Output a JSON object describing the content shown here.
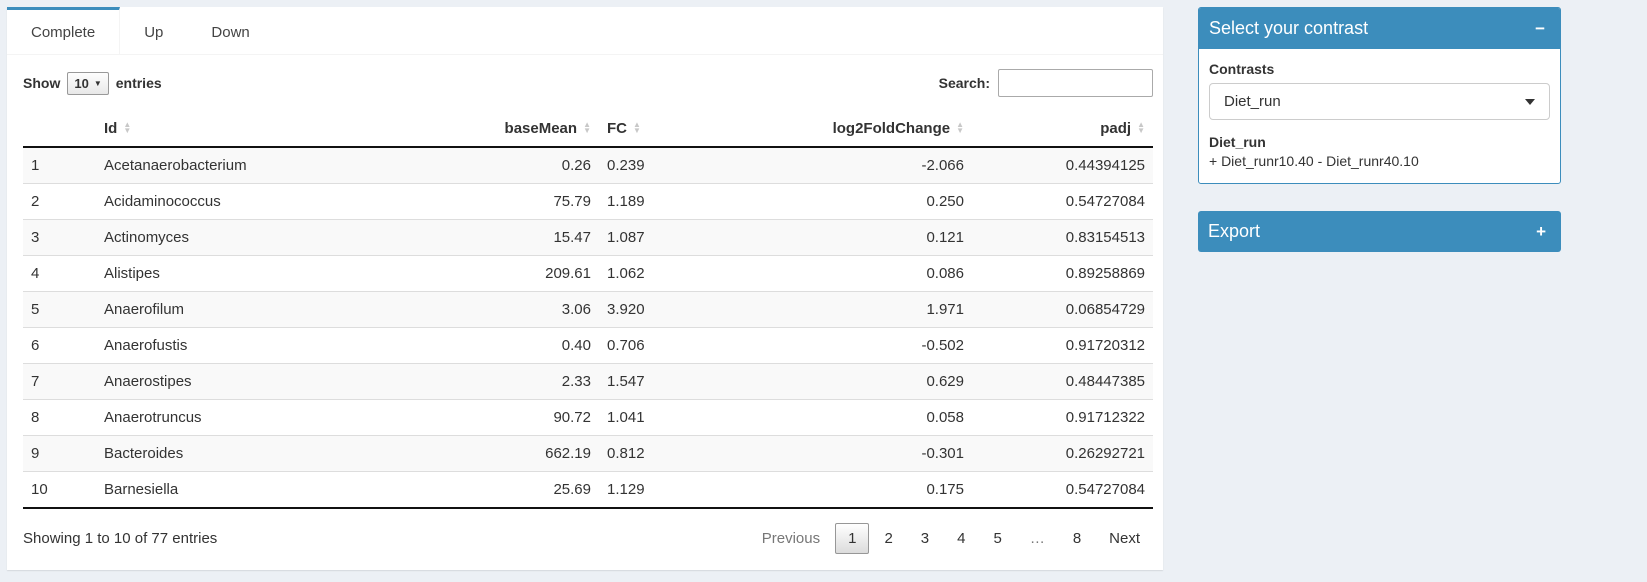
{
  "colors": {
    "accent": "#3c8dbc",
    "page_bg": "#ecf0f5"
  },
  "tabs": [
    {
      "label": "Complete",
      "active": true
    },
    {
      "label": "Up",
      "active": false
    },
    {
      "label": "Down",
      "active": false
    }
  ],
  "controls": {
    "show_label": "Show",
    "page_length": "10",
    "entries_label": "entries",
    "search_label": "Search:",
    "search_value": ""
  },
  "table": {
    "columns": [
      {
        "label": "Id",
        "align": "left",
        "key": "id"
      },
      {
        "label": "baseMean",
        "align": "right",
        "key": "baseMean"
      },
      {
        "label": "FC",
        "align": "left",
        "key": "fc"
      },
      {
        "label": "log2FoldChange",
        "align": "right",
        "key": "log2fc"
      },
      {
        "label": "padj",
        "align": "right",
        "key": "padj"
      }
    ],
    "rows": [
      {
        "num": "1",
        "id": "Acetanaerobacterium",
        "baseMean": "0.26",
        "fc": "0.239",
        "log2fc": "-2.066",
        "padj": "0.44394125"
      },
      {
        "num": "2",
        "id": "Acidaminococcus",
        "baseMean": "75.79",
        "fc": "1.189",
        "log2fc": "0.250",
        "padj": "0.54727084"
      },
      {
        "num": "3",
        "id": "Actinomyces",
        "baseMean": "15.47",
        "fc": "1.087",
        "log2fc": "0.121",
        "padj": "0.83154513"
      },
      {
        "num": "4",
        "id": "Alistipes",
        "baseMean": "209.61",
        "fc": "1.062",
        "log2fc": "0.086",
        "padj": "0.89258869"
      },
      {
        "num": "5",
        "id": "Anaerofilum",
        "baseMean": "3.06",
        "fc": "3.920",
        "log2fc": "1.971",
        "padj": "0.06854729"
      },
      {
        "num": "6",
        "id": "Anaerofustis",
        "baseMean": "0.40",
        "fc": "0.706",
        "log2fc": "-0.502",
        "padj": "0.91720312"
      },
      {
        "num": "7",
        "id": "Anaerostipes",
        "baseMean": "2.33",
        "fc": "1.547",
        "log2fc": "0.629",
        "padj": "0.48447385"
      },
      {
        "num": "8",
        "id": "Anaerotruncus",
        "baseMean": "90.72",
        "fc": "1.041",
        "log2fc": "0.058",
        "padj": "0.91712322"
      },
      {
        "num": "9",
        "id": "Bacteroides",
        "baseMean": "662.19",
        "fc": "0.812",
        "log2fc": "-0.301",
        "padj": "0.26292721"
      },
      {
        "num": "10",
        "id": "Barnesiella",
        "baseMean": "25.69",
        "fc": "1.129",
        "log2fc": "0.175",
        "padj": "0.54727084"
      }
    ]
  },
  "footer": {
    "info": "Showing 1 to 10 of 77 entries",
    "pagination": {
      "previous": "Previous",
      "pages": [
        "1",
        "2",
        "3",
        "4",
        "5",
        "…",
        "8"
      ],
      "active_page": "1",
      "next": "Next"
    }
  },
  "contrast_box": {
    "title": "Select your contrast",
    "collapse_icon": "−",
    "contrasts_label": "Contrasts",
    "selected_contrast": "Diet_run",
    "detail_title": "Diet_run",
    "detail_formula": "+ Diet_runr10.40 - Diet_runr40.10"
  },
  "export_box": {
    "title": "Export",
    "collapse_icon": "+"
  }
}
